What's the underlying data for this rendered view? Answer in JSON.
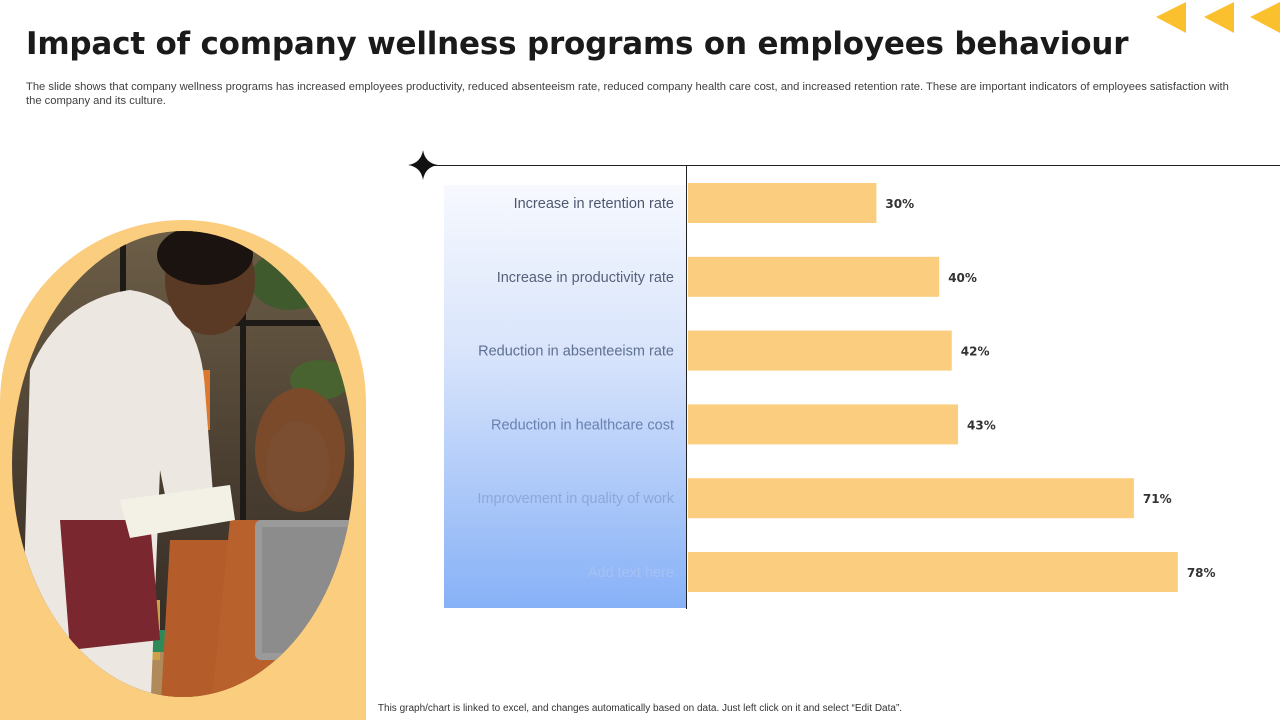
{
  "header": {
    "title": "Impact of company wellness programs on employees behaviour",
    "subtitle": "The slide shows that company wellness programs has increased employees productivity, reduced absenteeism rate, reduced company health care cost, and increased retention rate. These are important indicators of employees satisfaction with the company and its culture."
  },
  "chart_data": {
    "type": "bar",
    "orientation": "horizontal",
    "categories": [
      "Increase in retention rate",
      "Increase in productivity rate",
      "Reduction in absenteeism rate",
      "Reduction in healthcare cost",
      "Improvement in quality of work",
      "Add text here"
    ],
    "values": [
      30,
      40,
      42,
      43,
      71,
      78
    ],
    "value_labels": [
      "30%",
      "40%",
      "42%",
      "43%",
      "71%",
      "78%"
    ],
    "xlim": [
      0,
      100
    ],
    "grid": false,
    "legend": "none",
    "bar_color": "#fbcd7f",
    "label_colors": [
      "#4d5870",
      "#56617a",
      "#5f6f92",
      "#6a80b0",
      "#8ea6dc",
      "#a7c1f3"
    ]
  },
  "footer": {
    "note": "This graph/chart is linked to excel, and changes automatically based on data. Just left click on it and select “Edit Data”."
  },
  "colors": {
    "accent": "#fbc02d",
    "frame": "#fbcd7f"
  }
}
